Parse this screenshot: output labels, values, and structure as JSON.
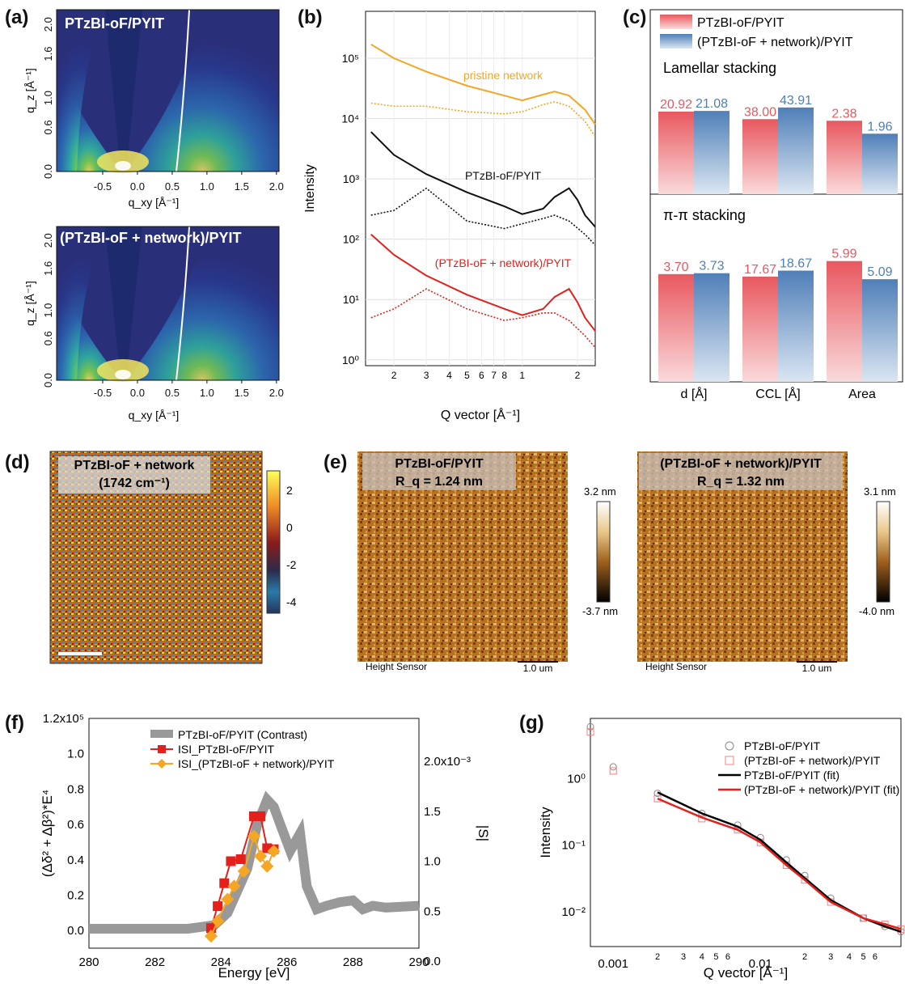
{
  "panels": {
    "a": "(a)",
    "b": "(b)",
    "c": "(c)",
    "d": "(d)",
    "e": "(e)",
    "f": "(f)",
    "g": "(g)"
  },
  "a": {
    "top_label": "PTzBI-oF/PYIT",
    "bottom_label": "(PTzBI-oF + network)/PYIT",
    "ylabel": "q_z [Å⁻¹]",
    "xlabel": "q_xy [Å⁻¹]",
    "xticks": [
      "-0.5",
      "0.0",
      "0.5",
      "1.0",
      "1.5",
      "2.0"
    ],
    "yticks": [
      "0.0",
      "0.6",
      "1.0",
      "1.6",
      "2.0"
    ]
  },
  "d": {
    "title_line1": "PTzBI-oF + network",
    "title_line2": "(1742 cm⁻¹)",
    "colorbar_ticks": [
      "2",
      "0",
      "-2",
      "-4"
    ]
  },
  "e": {
    "left_title": "PTzBI-oF/PYIT",
    "left_rq": "R_q = 1.24 nm",
    "left_max": "3.2 nm",
    "left_min": "-3.7 nm",
    "right_title": "(PTzBI-oF + network)/PYIT",
    "right_rq": "R_q = 1.32 nm",
    "right_max": "3.1 nm",
    "right_min": "-4.0 nm",
    "sensor": "Height Sensor",
    "scale": "1.0 um"
  },
  "chart_data": [
    {
      "panel": "b",
      "type": "line",
      "xscale": "log",
      "yscale": "log",
      "xlabel": "Q vector [Å⁻¹]",
      "ylabel": "Intensity",
      "xlim": [
        0.14,
        2.5
      ],
      "ylim": [
        0.8,
        600000
      ],
      "xtick_labels": [
        "2",
        "3",
        "4",
        "5",
        "6",
        "7",
        "8",
        "1",
        "2"
      ],
      "ytick_labels": [
        "10⁰",
        "10¹",
        "10²",
        "10³",
        "10⁴",
        "10⁵"
      ],
      "annotations": [
        "pristine network",
        "PTzBI-oF/PYIT",
        "(PTzBI-oF + network)/PYIT"
      ],
      "series": [
        {
          "color": "#f5a623",
          "style": "solid",
          "x": [
            0.15,
            0.2,
            0.3,
            0.5,
            0.8,
            1.0,
            1.3,
            1.5,
            1.8,
            2.2,
            2.5
          ],
          "y": [
            170000,
            100000,
            60000,
            35000,
            24000,
            20000,
            25000,
            28000,
            24000,
            14000,
            8000
          ]
        },
        {
          "color": "#f5a623",
          "style": "dotted",
          "x": [
            0.15,
            0.2,
            0.3,
            0.5,
            0.8,
            1.0,
            1.3,
            1.5,
            1.8,
            2.2,
            2.5
          ],
          "y": [
            18000,
            16000,
            16000,
            13000,
            12000,
            13000,
            17000,
            19000,
            16000,
            9000,
            5000
          ]
        },
        {
          "color": "#111111",
          "style": "solid",
          "x": [
            0.15,
            0.2,
            0.3,
            0.5,
            0.8,
            1.0,
            1.3,
            1.5,
            1.8,
            2.0,
            2.2,
            2.5
          ],
          "y": [
            6000,
            2500,
            1200,
            600,
            350,
            260,
            320,
            500,
            700,
            450,
            250,
            160
          ]
        },
        {
          "color": "#111111",
          "style": "dotted",
          "x": [
            0.15,
            0.2,
            0.3,
            0.5,
            0.8,
            1.0,
            1.3,
            1.5,
            1.8,
            2.2,
            2.5
          ],
          "y": [
            250,
            300,
            700,
            200,
            150,
            180,
            220,
            250,
            200,
            120,
            80
          ]
        },
        {
          "color": "#e3201b",
          "style": "solid",
          "x": [
            0.15,
            0.2,
            0.3,
            0.5,
            0.8,
            1.0,
            1.3,
            1.5,
            1.8,
            2.0,
            2.2,
            2.5
          ],
          "y": [
            120,
            55,
            25,
            12,
            7,
            5.5,
            7,
            11,
            15,
            9,
            5,
            3
          ]
        },
        {
          "color": "#e3201b",
          "style": "dotted",
          "x": [
            0.15,
            0.2,
            0.3,
            0.5,
            0.8,
            1.0,
            1.3,
            1.5,
            1.8,
            2.2,
            2.5
          ],
          "y": [
            5,
            7,
            15,
            7,
            4.5,
            5,
            6,
            6,
            4.5,
            2.5,
            1.6
          ]
        }
      ]
    },
    {
      "panel": "c",
      "type": "bar",
      "legend": [
        "PTzBI-oF/PYIT",
        "(PTzBI-oF + network)/PYIT"
      ],
      "colors": [
        "#e8585f",
        "#4f7fb8"
      ],
      "categories": [
        "d [Å]",
        "CCL [Å]",
        "Area"
      ],
      "groups": [
        {
          "title": "Lamellar stacking",
          "series": [
            {
              "values": [
                20.92,
                38.0,
                2.38
              ]
            },
            {
              "values": [
                21.08,
                43.91,
                1.96
              ]
            }
          ]
        },
        {
          "title": "π-π stacking",
          "series": [
            {
              "values": [
                3.7,
                17.67,
                5.99
              ]
            },
            {
              "values": [
                3.73,
                18.67,
                5.09
              ]
            }
          ]
        }
      ]
    },
    {
      "panel": "f",
      "type": "line",
      "xlabel": "Energy [eV]",
      "ylabel": "(Δδ² + Δβ²)*E⁴",
      "y2label": "|S|",
      "xlim": [
        280,
        290
      ],
      "ylim": [
        -0.1,
        1.2
      ],
      "y2lim": [
        0.0,
        2.3
      ],
      "xtick_labels": [
        "280",
        "282",
        "284",
        "286",
        "288",
        "290"
      ],
      "ytick_labels": [
        "0.0",
        "0.2",
        "0.4",
        "0.6",
        "0.8",
        "1.0",
        "1.2x10⁵"
      ],
      "y2tick_labels": [
        "0.0",
        "0.5",
        "1.0",
        "1.5",
        "2.0x10⁻³"
      ],
      "series": [
        {
          "name": "PTzBI-oF/PYIT (Contrast)",
          "color": "#999999",
          "axis": "left",
          "x": [
            280,
            283,
            283.8,
            284.2,
            284.8,
            285.1,
            285.4,
            285.6,
            285.9,
            286.1,
            286.4,
            286.6,
            286.9,
            287.2,
            287.6,
            288,
            288.3,
            288.6,
            289,
            290
          ],
          "y": [
            0.01,
            0.01,
            0.03,
            0.1,
            0.35,
            0.6,
            0.74,
            0.7,
            0.55,
            0.45,
            0.55,
            0.25,
            0.12,
            0.14,
            0.16,
            0.17,
            0.12,
            0.14,
            0.13,
            0.14
          ]
        },
        {
          "name": "ISI_PTzBI-oF/PYIT",
          "color": "#e3201b",
          "axis": "right",
          "x": [
            283.7,
            283.9,
            284.1,
            284.3,
            284.6,
            285.0,
            285.2,
            285.4,
            285.6
          ],
          "y": [
            0.33,
            0.55,
            0.78,
            1.0,
            1.02,
            1.45,
            1.45,
            1.13,
            1.12
          ]
        },
        {
          "name": "ISI_(PTzBI-oF + network)/PYIT",
          "color": "#f5a623",
          "axis": "right",
          "x": [
            283.7,
            283.9,
            284.2,
            284.4,
            284.7,
            285.0,
            285.2,
            285.4,
            285.6
          ],
          "y": [
            0.25,
            0.4,
            0.62,
            0.75,
            0.9,
            1.25,
            1.05,
            0.95,
            1.1
          ]
        }
      ]
    },
    {
      "panel": "g",
      "type": "scatter",
      "xscale": "log",
      "yscale": "log",
      "xlabel": "Q vector [Å⁻¹]",
      "ylabel": "Intensity",
      "xlim": [
        0.0007,
        0.09
      ],
      "ylim": [
        0.003,
        8
      ],
      "xtick_labels": [
        "0.001",
        "2",
        "3",
        "4",
        "5",
        "6",
        "0.01",
        "2",
        "3",
        "4",
        "5",
        "6"
      ],
      "ytick_labels": [
        "10⁻²",
        "10⁻¹",
        "10⁰"
      ],
      "series": [
        {
          "name": "PTzBI-oF/PYIT",
          "color": "#888888",
          "marker": "circle",
          "x": [
            0.0007,
            0.001,
            0.002,
            0.004,
            0.007,
            0.01,
            0.015,
            0.02,
            0.03,
            0.05,
            0.07,
            0.09
          ],
          "y": [
            6,
            1.5,
            0.6,
            0.3,
            0.2,
            0.13,
            0.06,
            0.035,
            0.016,
            0.008,
            0.006,
            0.005
          ]
        },
        {
          "name": "(PTzBI-oF + network)/PYIT",
          "color": "#f08080",
          "marker": "square",
          "x": [
            0.0007,
            0.001,
            0.002,
            0.004,
            0.007,
            0.01,
            0.015,
            0.02,
            0.03,
            0.05,
            0.07,
            0.09
          ],
          "y": [
            5,
            1.3,
            0.5,
            0.25,
            0.17,
            0.11,
            0.05,
            0.03,
            0.014,
            0.008,
            0.0065,
            0.0055
          ]
        },
        {
          "name": "PTzBI-oF/PYIT (fit)",
          "color": "#000000",
          "marker": "line",
          "x": [
            0.002,
            0.004,
            0.007,
            0.01,
            0.015,
            0.02,
            0.03,
            0.05,
            0.07,
            0.09
          ],
          "y": [
            0.62,
            0.3,
            0.19,
            0.12,
            0.055,
            0.032,
            0.015,
            0.008,
            0.006,
            0.005
          ]
        },
        {
          "name": "(PTzBI-oF + network)/PYIT (fit)",
          "color": "#e3201b",
          "marker": "line",
          "x": [
            0.002,
            0.004,
            0.007,
            0.01,
            0.015,
            0.02,
            0.03,
            0.05,
            0.07,
            0.09
          ],
          "y": [
            0.5,
            0.26,
            0.17,
            0.11,
            0.05,
            0.03,
            0.014,
            0.008,
            0.0065,
            0.0055
          ]
        }
      ]
    }
  ]
}
